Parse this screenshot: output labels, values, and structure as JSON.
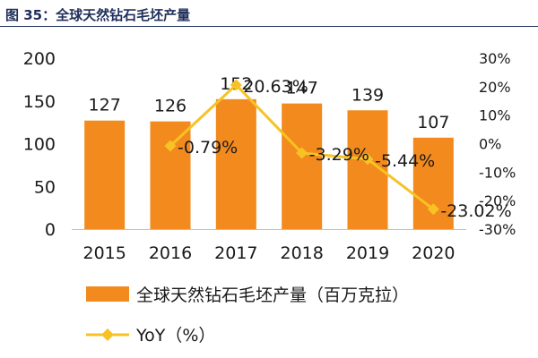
{
  "header": {
    "title": "图 35：全球天然钻石毛坯产量"
  },
  "chart_data": {
    "type": "bar",
    "categories": [
      "2015",
      "2016",
      "2017",
      "2018",
      "2019",
      "2020"
    ],
    "series": [
      {
        "name": "全球天然钻石毛坯产量（百万克拉）",
        "type": "bar",
        "axis": "left",
        "values": [
          127,
          126,
          152,
          147,
          139,
          107
        ],
        "labels": [
          "127",
          "126",
          "152",
          "147",
          "139",
          "107"
        ]
      },
      {
        "name": "YoY（%）",
        "type": "line",
        "axis": "right",
        "values": [
          null,
          -0.79,
          20.63,
          -3.29,
          -5.44,
          -23.02
        ],
        "labels": [
          "",
          "-0.79%",
          "20.63%",
          "-3.29%",
          "-5.44%",
          "-23.02%"
        ]
      }
    ],
    "y_left": {
      "ylim": [
        0,
        200
      ],
      "ticks": [
        "0",
        "50",
        "100",
        "150",
        "200"
      ]
    },
    "y_right": {
      "ylim": [
        -30,
        30
      ],
      "ticks": [
        "-30%",
        "-20%",
        "-10%",
        "0%",
        "10%",
        "20%",
        "30%"
      ]
    },
    "grid": false,
    "legend_position": "bottom",
    "colors": {
      "bar": "#f28a1e",
      "line": "#f7c224",
      "text": "#1a1a1a",
      "title": "#1f2f5a"
    }
  }
}
